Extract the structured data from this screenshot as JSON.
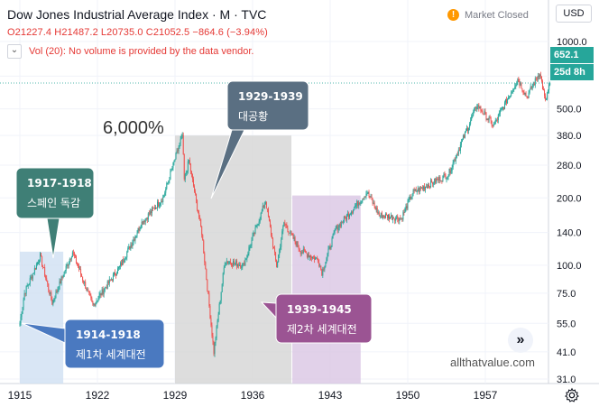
{
  "header": {
    "title": "Dow Jones Industrial Average Index · M · TVC",
    "market_status": "Market Closed",
    "currency": "USD",
    "ohlc": "O21227.4 H21487.2 L20735.0 C21052.5 −864.6 (−3.94%)",
    "volume_note": "Vol (20): No volume is provided by the data vendor."
  },
  "price_tags": {
    "last": "652.1",
    "countdown": "25d 8h"
  },
  "colors": {
    "up": "#26a69a",
    "down": "#ef5350",
    "ohlc_text": "#e53935"
  },
  "annotations": {
    "pct_label": "6,000%",
    "watermark": "allthatvalue.com",
    "boxes": [
      {
        "title": "1917-1918",
        "body": "스페인 독감",
        "color": "#3f7f76"
      },
      {
        "title": "1914-1918",
        "body": "제1차 세계대전",
        "color": "#4a79c0"
      },
      {
        "title": "1929-1939",
        "body": "대공황",
        "color": "#5a6f82"
      },
      {
        "title": "1939-1945",
        "body": "제2차 세계대전",
        "color": "#9b5493"
      }
    ]
  },
  "chart_data": {
    "type": "candlestick",
    "title": "Dow Jones Industrial Average Index · M · TVC",
    "y_scale": "log",
    "y_ticks": [
      31.0,
      41.0,
      55.0,
      75.0,
      100.0,
      140.0,
      200.0,
      280.0,
      380.0,
      500.0,
      700.0,
      1000.0
    ],
    "x_ticks": [
      "1915",
      "1922",
      "1929",
      "1936",
      "1943",
      "1950",
      "1957"
    ],
    "grid": true,
    "anchor_closes": [
      {
        "date": "1915-01",
        "close": 55
      },
      {
        "date": "1915-06",
        "close": 75
      },
      {
        "date": "1916-11",
        "close": 110
      },
      {
        "date": "1917-12",
        "close": 68
      },
      {
        "date": "1919-10",
        "close": 115
      },
      {
        "date": "1921-08",
        "close": 66
      },
      {
        "date": "1924-01",
        "close": 98
      },
      {
        "date": "1926-01",
        "close": 155
      },
      {
        "date": "1927-12",
        "close": 200
      },
      {
        "date": "1929-09",
        "close": 381
      },
      {
        "date": "1929-11",
        "close": 240
      },
      {
        "date": "1930-04",
        "close": 294
      },
      {
        "date": "1931-06",
        "close": 140
      },
      {
        "date": "1932-07",
        "close": 41
      },
      {
        "date": "1933-07",
        "close": 105
      },
      {
        "date": "1935-03",
        "close": 100
      },
      {
        "date": "1937-03",
        "close": 194
      },
      {
        "date": "1938-03",
        "close": 99
      },
      {
        "date": "1938-11",
        "close": 155
      },
      {
        "date": "1940-05",
        "close": 116
      },
      {
        "date": "1941-12",
        "close": 106
      },
      {
        "date": "1942-04",
        "close": 93
      },
      {
        "date": "1943-07",
        "close": 145
      },
      {
        "date": "1946-05",
        "close": 212
      },
      {
        "date": "1947-06",
        "close": 168
      },
      {
        "date": "1949-06",
        "close": 162
      },
      {
        "date": "1950-06",
        "close": 210
      },
      {
        "date": "1953-09",
        "close": 255
      },
      {
        "date": "1956-04",
        "close": 520
      },
      {
        "date": "1957-10",
        "close": 420
      },
      {
        "date": "1959-12",
        "close": 680
      },
      {
        "date": "1960-10",
        "close": 565
      },
      {
        "date": "1961-12",
        "close": 730
      },
      {
        "date": "1962-06",
        "close": 535
      },
      {
        "date": "1962-11",
        "close": 652.1
      }
    ],
    "shaded_periods": [
      {
        "label": "1914-1918",
        "start": "1915-01",
        "end": "1918-11",
        "color": "#cfe0f2"
      },
      {
        "label": "1929-1939",
        "start": "1929-01",
        "end": "1939-06",
        "color": "#d4d4d4"
      },
      {
        "label": "1939-1945",
        "start": "1939-08",
        "end": "1945-09",
        "color": "#d9c6e3"
      }
    ]
  }
}
